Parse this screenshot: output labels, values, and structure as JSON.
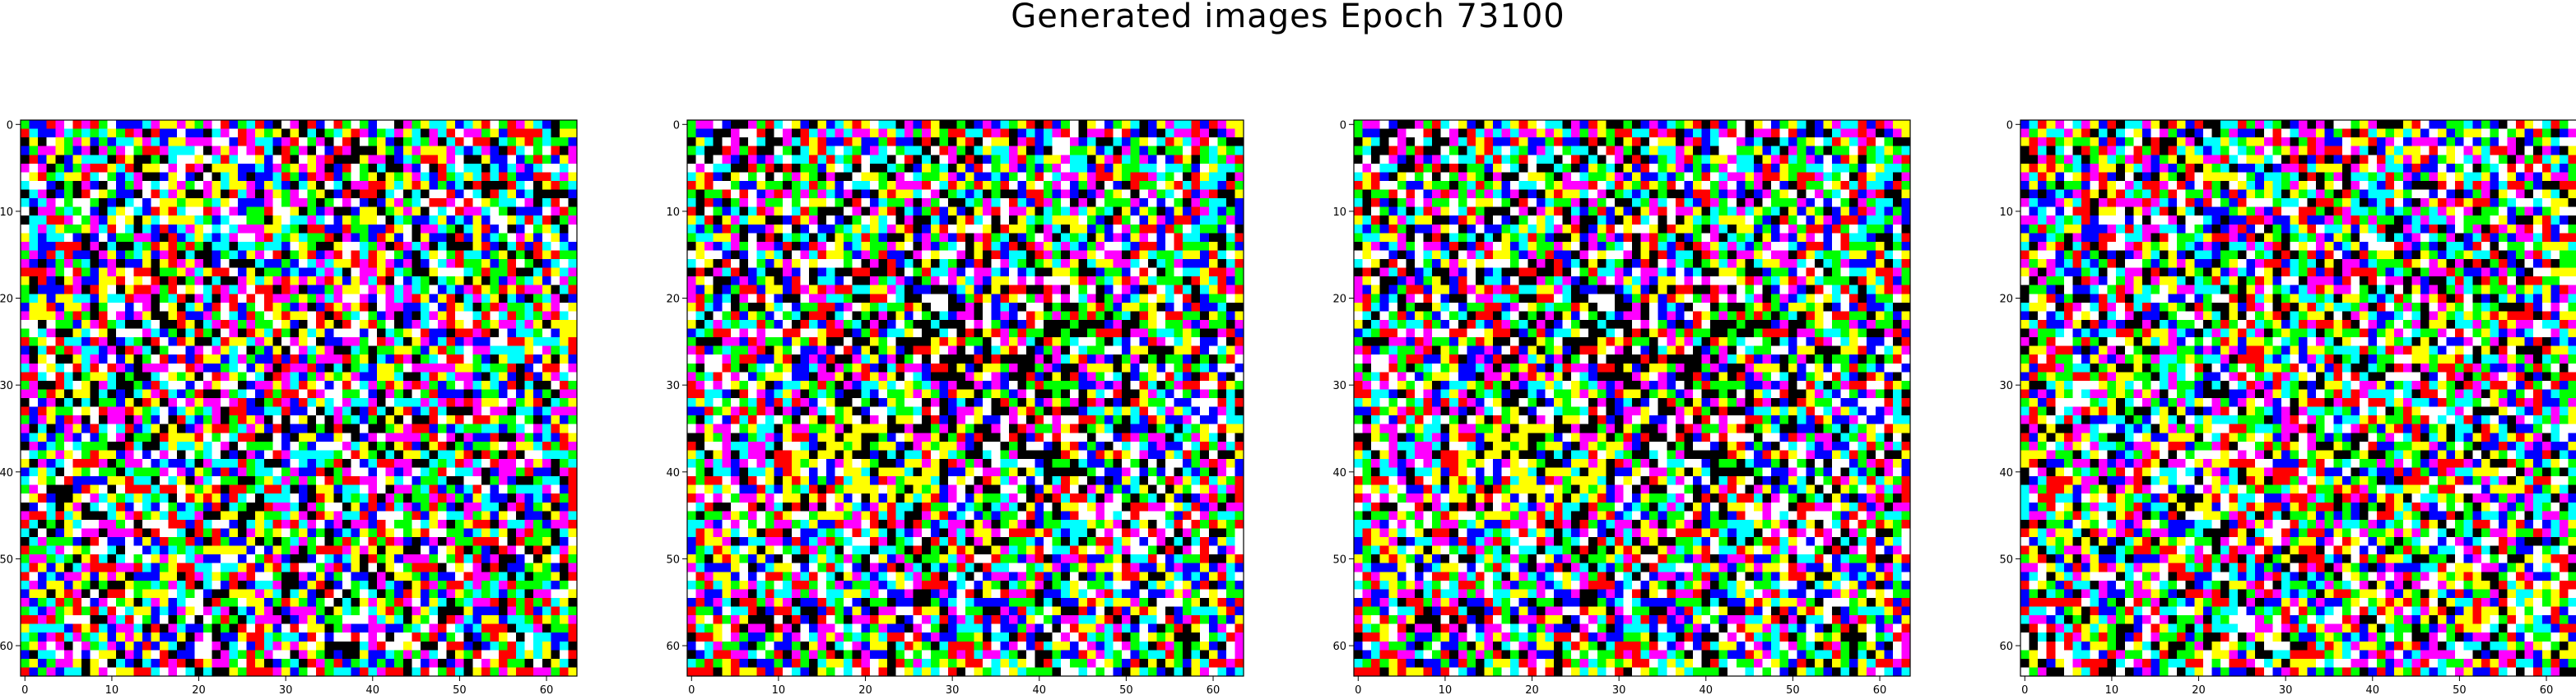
{
  "title": "Generated images Epoch 73100",
  "chart_data": {
    "type": "heatmap",
    "title": "Generated images Epoch 73100",
    "palette": [
      "#ff0000",
      "#00ff00",
      "#0000ff",
      "#ffff00",
      "#00ffff",
      "#ff00ff",
      "#ffffff",
      "#000000"
    ],
    "panels": [
      {
        "name": "",
        "xlim": [
          0,
          63
        ],
        "ylim": [
          63,
          0
        ],
        "grid_size": 64,
        "xticks": [
          0,
          10,
          20,
          30,
          40,
          50,
          60
        ],
        "yticks": [
          0,
          10,
          20,
          30,
          40,
          50,
          60
        ],
        "seed": 11,
        "dark_bias": 0.0
      },
      {
        "name": "",
        "xlim": [
          0,
          63
        ],
        "ylim": [
          63,
          0
        ],
        "grid_size": 64,
        "xticks": [
          0,
          10,
          20,
          30,
          40,
          50,
          60
        ],
        "yticks": [
          0,
          10,
          20,
          30,
          40,
          50,
          60
        ],
        "seed": 29,
        "dark_bias": 0.25
      },
      {
        "name": "",
        "xlim": [
          0,
          63
        ],
        "ylim": [
          63,
          0
        ],
        "grid_size": 64,
        "xticks": [
          0,
          10,
          20,
          30,
          40,
          50,
          60
        ],
        "yticks": [
          0,
          10,
          20,
          30,
          40,
          50,
          60
        ],
        "seed": 29,
        "dark_bias": 0.25
      },
      {
        "name": "",
        "xlim": [
          0,
          63
        ],
        "ylim": [
          63,
          0
        ],
        "grid_size": 64,
        "xticks": [
          0,
          10,
          20,
          30,
          40,
          50,
          60
        ],
        "yticks": [
          0,
          10,
          20,
          30,
          40,
          50,
          60
        ],
        "seed": 47,
        "dark_bias": 0.0
      }
    ]
  }
}
